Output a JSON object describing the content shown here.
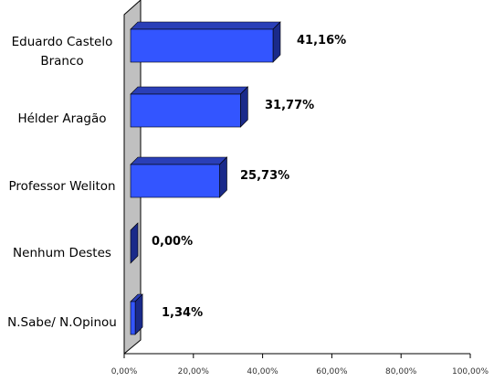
{
  "chart_data": {
    "type": "bar",
    "orientation": "horizontal",
    "style": "3d",
    "categories": [
      [
        "Eduardo Castelo",
        "Branco"
      ],
      [
        "Hélder Aragão"
      ],
      [
        "Professor Weliton"
      ],
      [
        "Nenhum Destes"
      ],
      [
        "N.Sabe/ N.Opinou"
      ]
    ],
    "values": [
      41.16,
      31.77,
      25.73,
      0.0,
      1.34
    ],
    "value_labels": [
      "41,16%",
      "31,77%",
      "25,73%",
      "0,00%",
      "1,34%"
    ],
    "xlim": [
      0,
      100
    ],
    "xticks": [
      0,
      20,
      40,
      60,
      80,
      100
    ],
    "xtick_labels": [
      "0,00%",
      "20,00%",
      "40,00%",
      "60,00%",
      "80,00%",
      "100,00%"
    ],
    "grid": false,
    "colors": {
      "bar_front": "#3355ff",
      "bar_side": "#1a2a8a",
      "bar_top": "#2a3fb8",
      "wall": "#c0c0c0"
    }
  }
}
